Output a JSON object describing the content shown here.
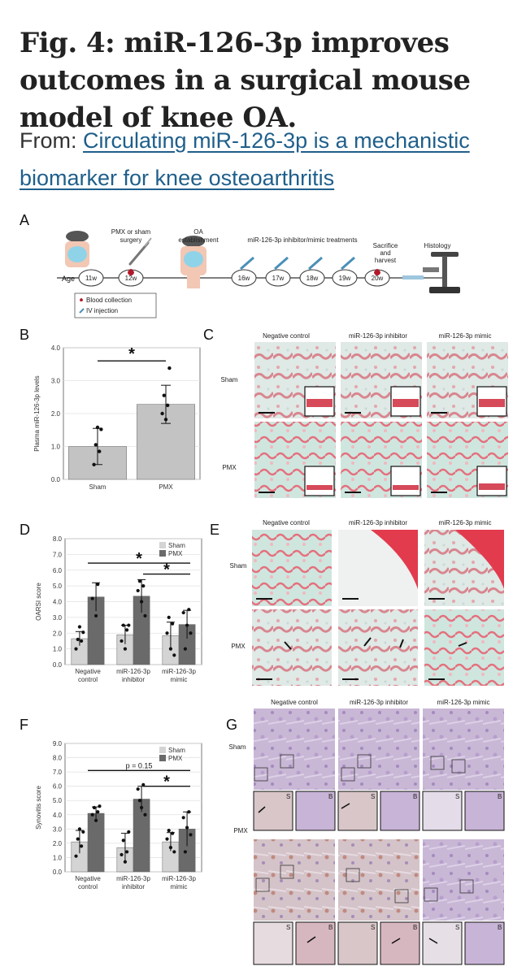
{
  "title": "Fig. 4: miR-126-3p improves outcomes in a surgical mouse model of knee OA.",
  "from_label": "From:",
  "article_link": "Circulating miR-126-3p is a mechanistic biomarker for knee osteoarthritis",
  "panels": {
    "A": "A",
    "B": "B",
    "C": "C",
    "D": "D",
    "E": "E",
    "F": "F",
    "G": "G"
  },
  "timeline": {
    "age_label": "Age",
    "weeks": [
      "11w",
      "12w",
      "16w",
      "17w",
      "18w",
      "19w",
      "20w"
    ],
    "pmx_label": [
      "PMX or sham",
      "surgery"
    ],
    "oa_label": [
      "OA",
      "establishment"
    ],
    "treat_label": "miR-126-3p inhibitor/mimic treatments",
    "sacrifice_label": [
      "Sacrifice",
      "and",
      "harvest"
    ],
    "histology_label": "Histology",
    "legend_blood": "Blood collection",
    "legend_iv": "IV injection"
  },
  "image_headers": [
    "Negative control",
    "miR-126-3p inhibitor",
    "miR-126-3p mimic"
  ],
  "row_labels": {
    "sham": "Sham",
    "pmx": "PMX"
  },
  "inset_labels": {
    "s": "S",
    "b": "B"
  },
  "chart_data": [
    {
      "type": "bar",
      "panel": "B",
      "categories": [
        "Sham",
        "PMX"
      ],
      "values": [
        1.0,
        2.28
      ],
      "errors": [
        0.55,
        0.58
      ],
      "points": [
        [
          0.45,
          0.85,
          1.05,
          1.52,
          1.58
        ],
        [
          1.82,
          2.0,
          2.25,
          2.55,
          3.38
        ]
      ],
      "ylabel": "Plasma miR-126-3p levels",
      "ylim": [
        0,
        4
      ],
      "yticks": [
        "0.0",
        "1.0",
        "2.0",
        "3.0",
        "4.0"
      ],
      "significance": "*",
      "bar_color": "#c3c3c3"
    },
    {
      "type": "bar",
      "panel": "D",
      "categories": [
        "Negative control",
        "miR-126-3p inhibitor",
        "miR-126-3p mimic"
      ],
      "category_lines": [
        [
          "Negative",
          "control"
        ],
        [
          "miR-126-3p",
          "inhibitor"
        ],
        [
          "miR-126-3p",
          "mimic"
        ]
      ],
      "series": [
        {
          "name": "Sham",
          "values": [
            1.65,
            1.9,
            1.85
          ],
          "errors": [
            0.45,
            0.6,
            0.85
          ],
          "color": "#d4d4d4"
        },
        {
          "name": "PMX",
          "values": [
            4.3,
            4.35,
            2.55
          ],
          "errors": [
            0.9,
            1.05,
            0.9
          ],
          "color": "#6a6a6a"
        }
      ],
      "points": [
        [
          [
            1.0,
            1.5,
            1.6,
            2.05,
            2.4
          ],
          [
            3.1,
            4.2,
            5.1
          ]
        ],
        [
          [
            1.0,
            1.5,
            2.2,
            2.5,
            2.5
          ],
          [
            3.1,
            4.0,
            4.7,
            5.0,
            5.3
          ]
        ],
        [
          [
            0.6,
            1.0,
            2.0,
            2.6,
            3.0
          ],
          [
            1.0,
            2.0,
            2.5,
            3.3,
            3.5
          ]
        ]
      ],
      "ylabel": "OARSI score",
      "ylim": [
        0,
        8
      ],
      "yticks": [
        "0.0",
        "1.0",
        "2.0",
        "3.0",
        "4.0",
        "5.0",
        "6.0",
        "7.0",
        "8.0"
      ],
      "brackets": [
        {
          "label": "*"
        },
        {
          "label": "*"
        }
      ]
    },
    {
      "type": "bar",
      "panel": "F",
      "categories": [
        "Negative control",
        "miR-126-3p inhibitor",
        "miR-126-3p mimic"
      ],
      "category_lines": [
        [
          "Negative",
          "control"
        ],
        [
          "miR-126-3p",
          "inhibitor"
        ],
        [
          "miR-126-3p",
          "mimic"
        ]
      ],
      "series": [
        {
          "name": "Sham",
          "values": [
            2.1,
            1.7,
            2.1
          ],
          "errors": [
            0.8,
            1.0,
            0.65
          ],
          "color": "#d4d4d4"
        },
        {
          "name": "PMX",
          "values": [
            4.1,
            5.1,
            3.0
          ],
          "errors": [
            0.45,
            0.9,
            1.2
          ],
          "color": "#6a6a6a"
        }
      ],
      "points": [
        [
          [
            1.1,
            1.8,
            2.3,
            2.8,
            3.0
          ],
          [
            3.6,
            4.0,
            4.2,
            4.5,
            4.6
          ]
        ],
        [
          [
            0.7,
            1.2,
            1.4,
            2.2,
            2.8
          ],
          [
            4.0,
            4.5,
            5.8,
            6.1,
            5.0
          ]
        ],
        [
          [
            1.4,
            1.7,
            2.3,
            2.7,
            2.9
          ],
          [
            1.4,
            2.6,
            3.1,
            3.8,
            4.2
          ]
        ]
      ],
      "ylabel": "Synovitis score",
      "ylim": [
        0,
        9
      ],
      "yticks": [
        "0.0",
        "1.0",
        "2.0",
        "3.0",
        "4.0",
        "5.0",
        "6.0",
        "7.0",
        "8.0",
        "9.0"
      ],
      "brackets": [
        {
          "label": "p = 0.15"
        },
        {
          "label": "*"
        }
      ]
    }
  ]
}
